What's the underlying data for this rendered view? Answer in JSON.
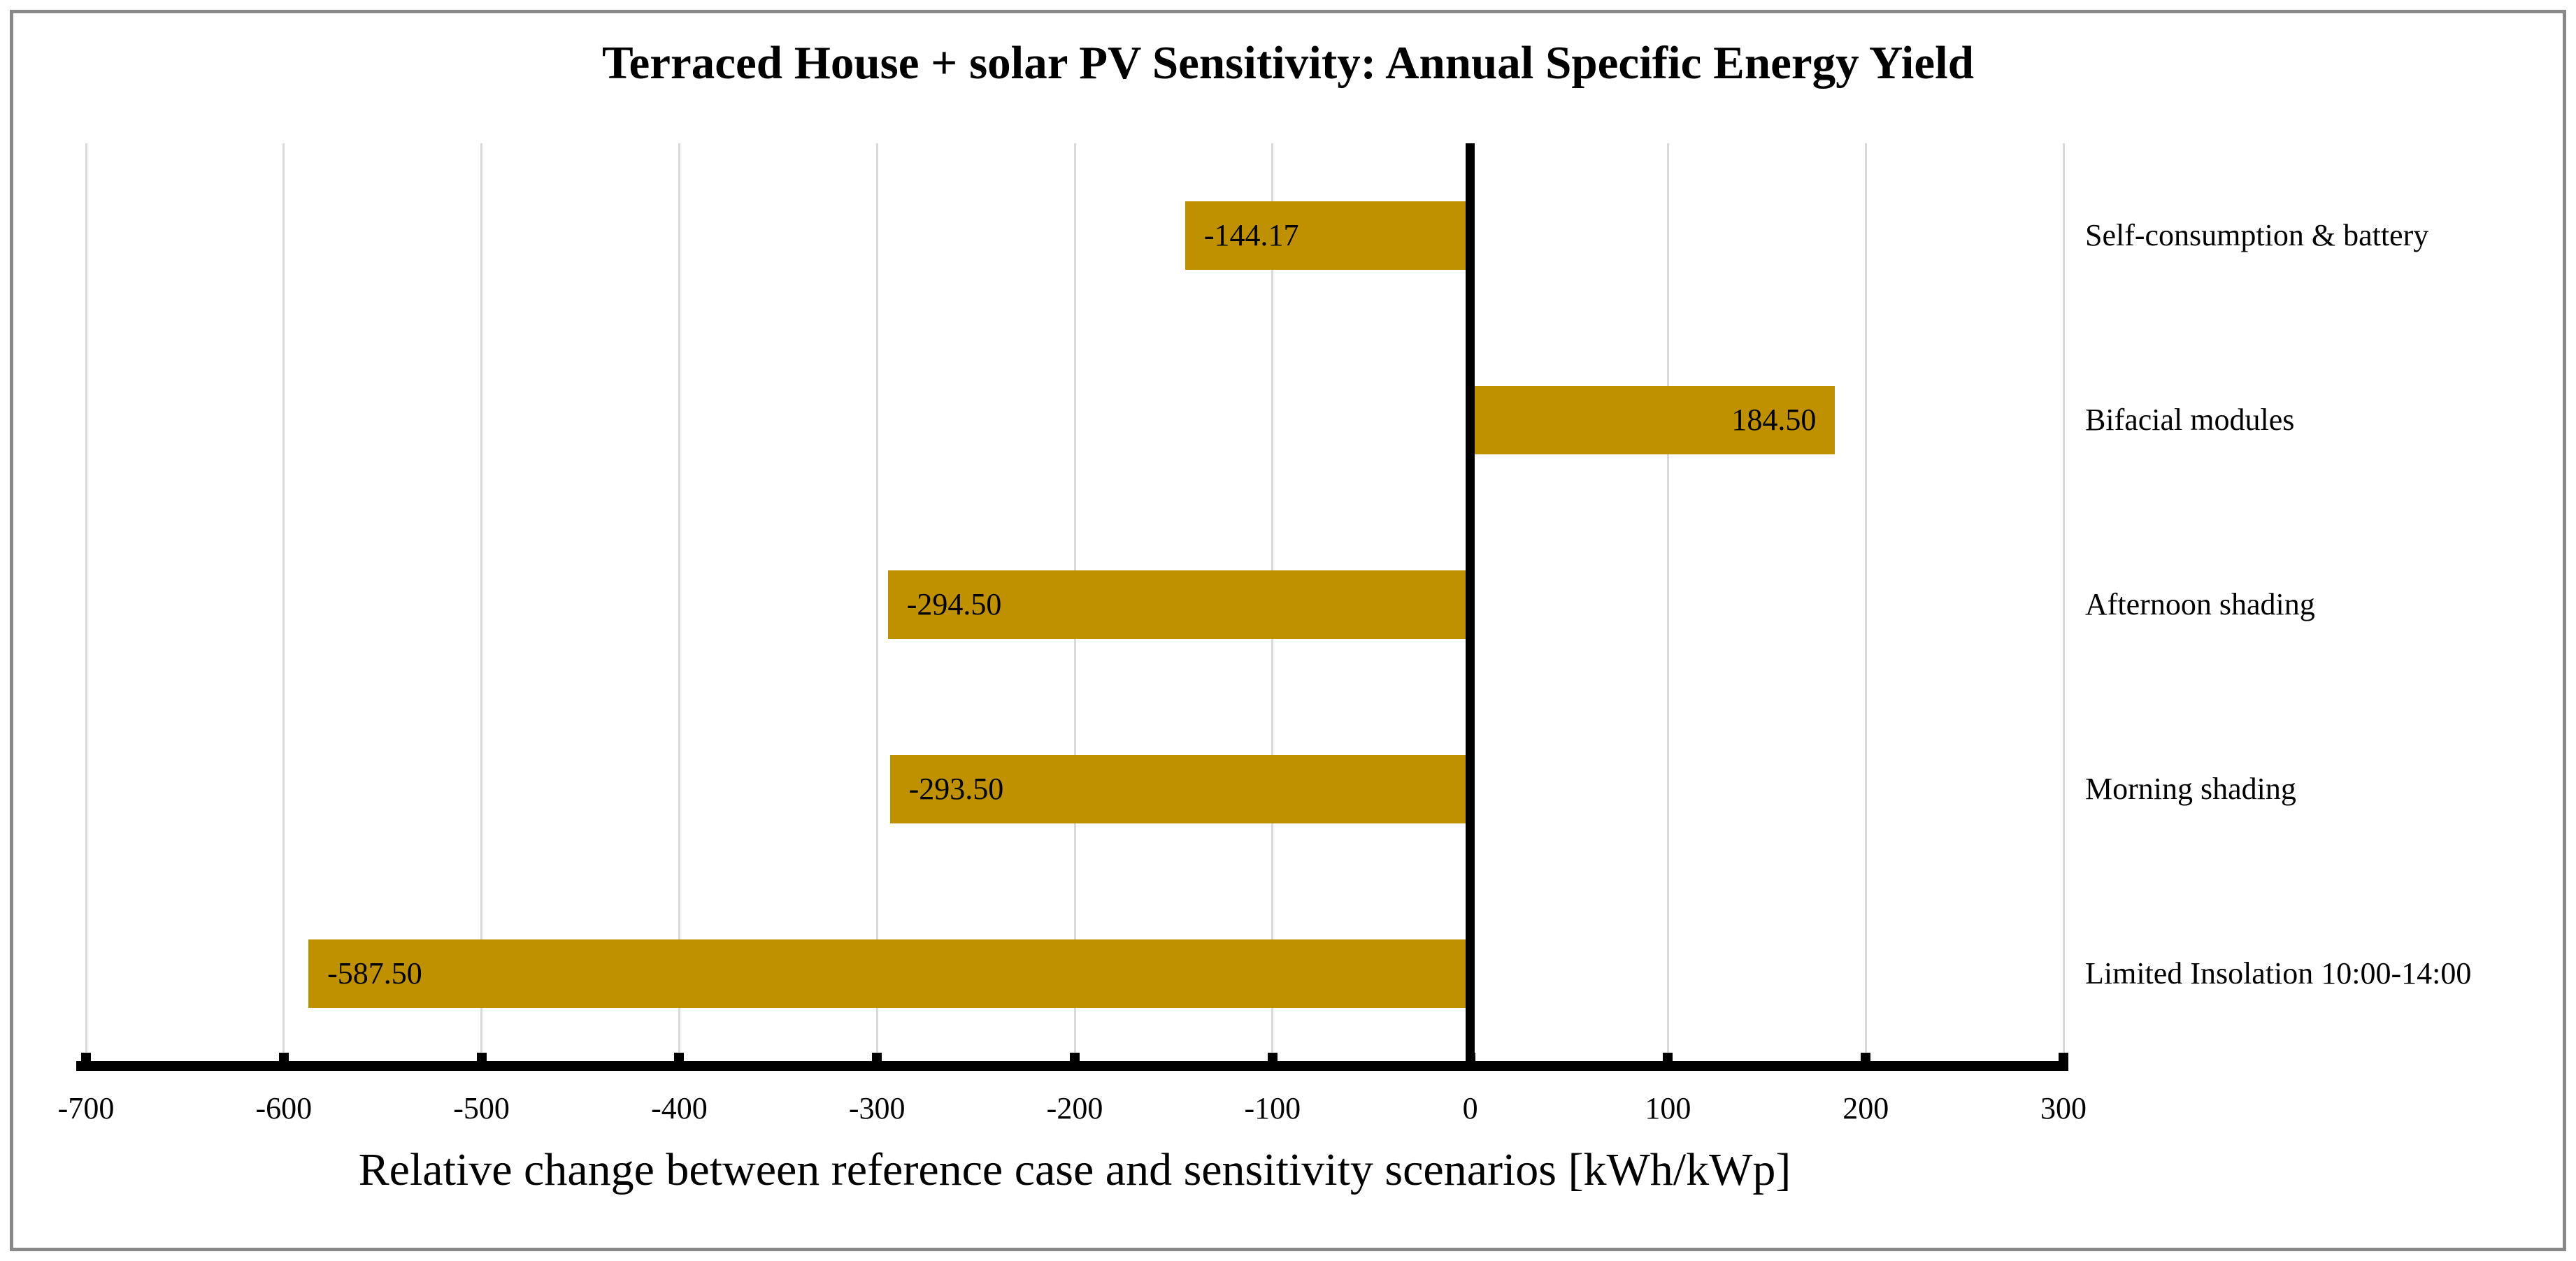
{
  "chart_data": {
    "type": "bar",
    "orientation": "horizontal",
    "title": "Terraced House + solar PV Sensitivity: Annual Specific Energy Yield",
    "xlabel": "Relative change between reference case and sensitivity scenarios [kWh/kWp]",
    "categories": [
      "Self-consumption & battery",
      "Bifacial modules",
      "Afternoon shading",
      "Morning shading",
      "Limited Insolation 10:00-14:00"
    ],
    "values": [
      -144.17,
      184.5,
      -294.5,
      -293.5,
      -587.5
    ],
    "value_labels": [
      "-144.17",
      "184.50",
      "-294.50",
      "-293.50",
      "-587.50"
    ],
    "xlim": [
      -700,
      300
    ],
    "xticks": [
      -700,
      -600,
      -500,
      -400,
      -300,
      -200,
      -100,
      0,
      100,
      200,
      300
    ],
    "xtick_labels": [
      "-700",
      "-600",
      "-500",
      "-400",
      "-300",
      "-200",
      "-100",
      "0",
      "100",
      "200",
      "300"
    ],
    "grid": true,
    "legend": false,
    "colors": {
      "bar": "#BF9000",
      "gridline": "#D9D9D9",
      "axis": "#000000",
      "text": "#000000",
      "frame_border": "#898989",
      "background": "#FFFFFF"
    }
  }
}
